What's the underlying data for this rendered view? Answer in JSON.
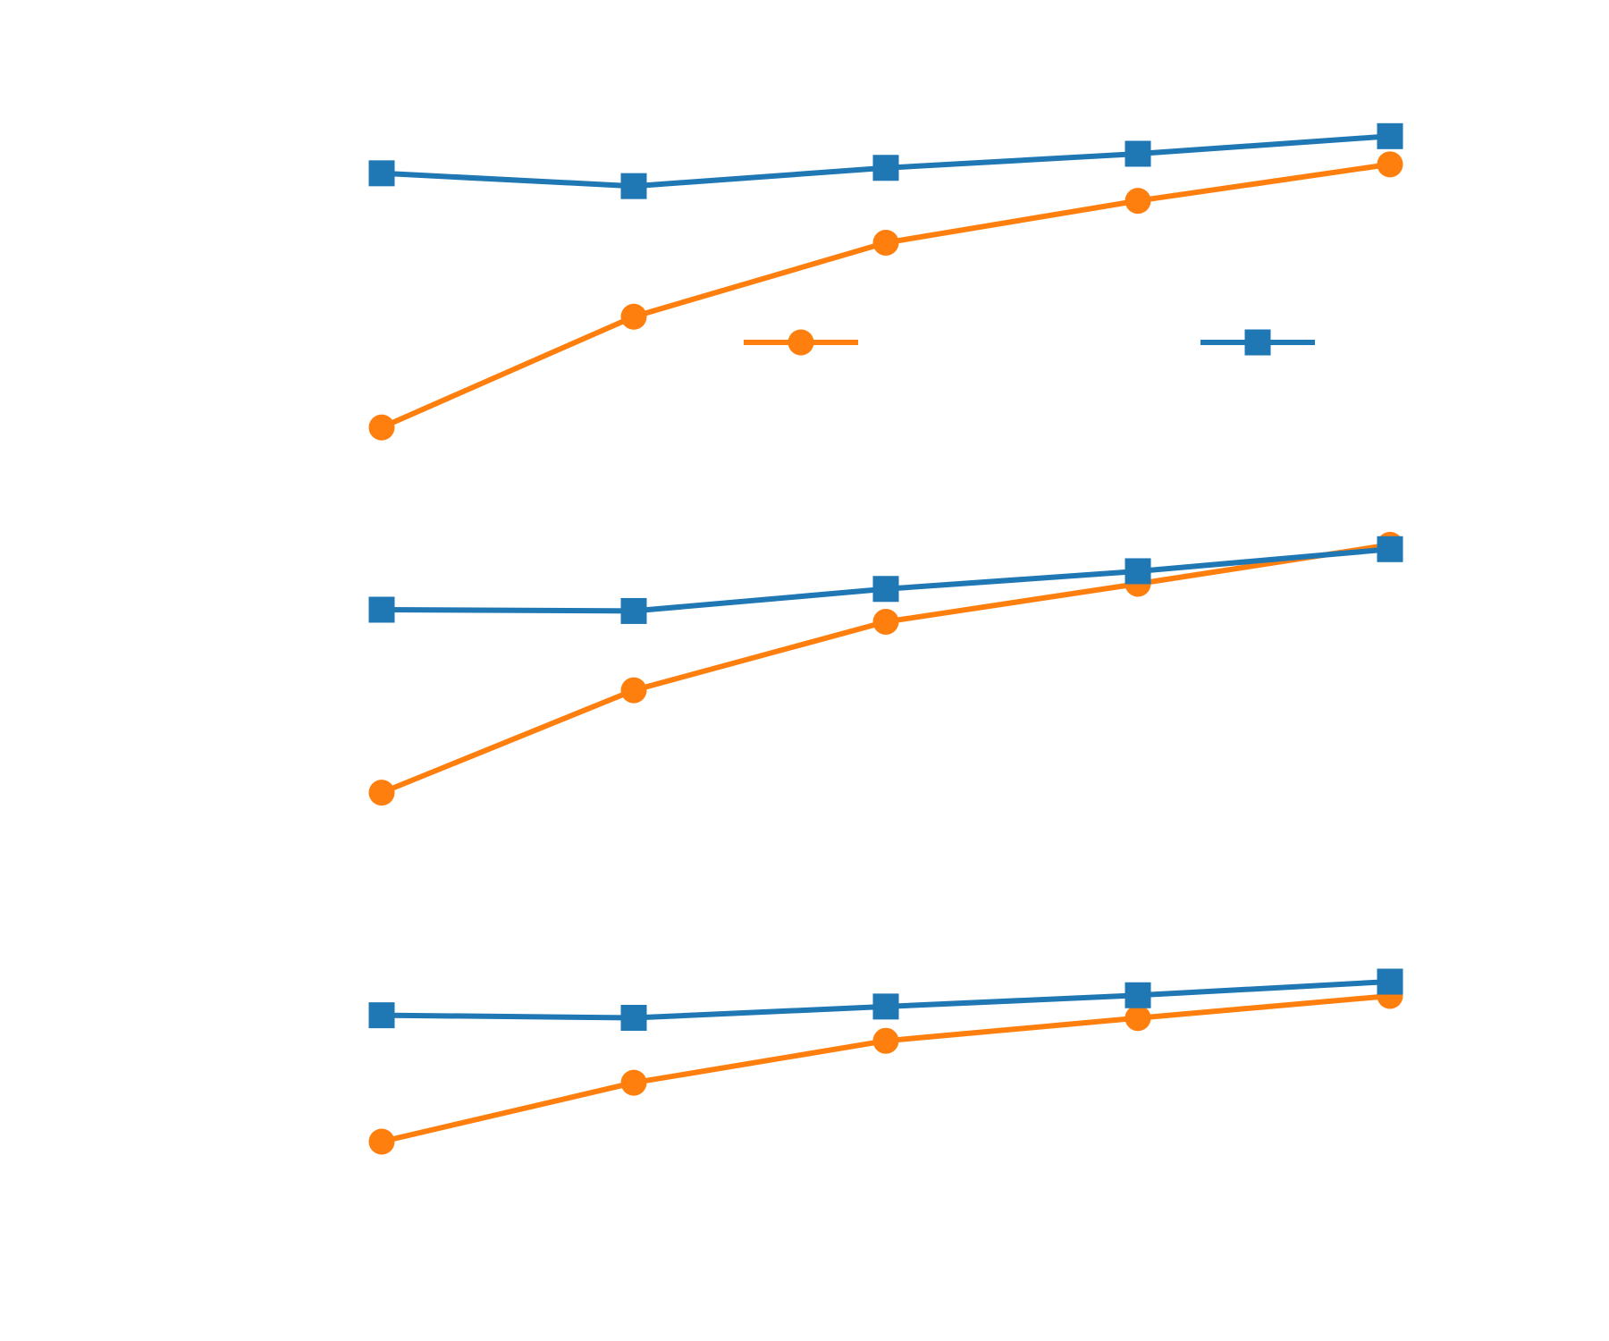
{
  "colors": {
    "background": "#ffffff",
    "series_orange": "#ff7f0e",
    "series_blue": "#1f77b4"
  },
  "chart_data": [
    {
      "type": "line",
      "panel": 1,
      "x": [
        1,
        2,
        3,
        4,
        5
      ],
      "ylim": [
        0,
        1
      ],
      "grid": false,
      "legend": "below-right",
      "series": [
        {
          "color": "#ff7f0e",
          "marker": "circle",
          "values": [
            0.145,
            0.491,
            0.722,
            0.853,
            0.967
          ]
        },
        {
          "color": "#1f77b4",
          "marker": "square",
          "values": [
            0.939,
            0.899,
            0.956,
            1.0,
            1.055
          ]
        }
      ]
    },
    {
      "type": "line",
      "panel": 2,
      "x": [
        1,
        2,
        3,
        4,
        5
      ],
      "ylim": [
        0,
        1
      ],
      "grid": false,
      "series": [
        {
          "color": "#ff7f0e",
          "marker": "circle",
          "values": [
            0.064,
            0.463,
            0.73,
            0.878,
            1.03
          ]
        },
        {
          "color": "#1f77b4",
          "marker": "square",
          "values": [
            0.777,
            0.772,
            0.858,
            0.927,
            1.013
          ]
        }
      ]
    },
    {
      "type": "line",
      "panel": 3,
      "x": [
        1,
        2,
        3,
        4,
        5
      ],
      "ylim": [
        0,
        1
      ],
      "grid": false,
      "series": [
        {
          "color": "#ff7f0e",
          "marker": "circle",
          "values": [
            0.147,
            0.424,
            0.621,
            0.728,
            0.832
          ]
        },
        {
          "color": "#1f77b4",
          "marker": "square",
          "values": [
            0.741,
            0.729,
            0.782,
            0.835,
            0.899
          ]
        }
      ]
    }
  ]
}
